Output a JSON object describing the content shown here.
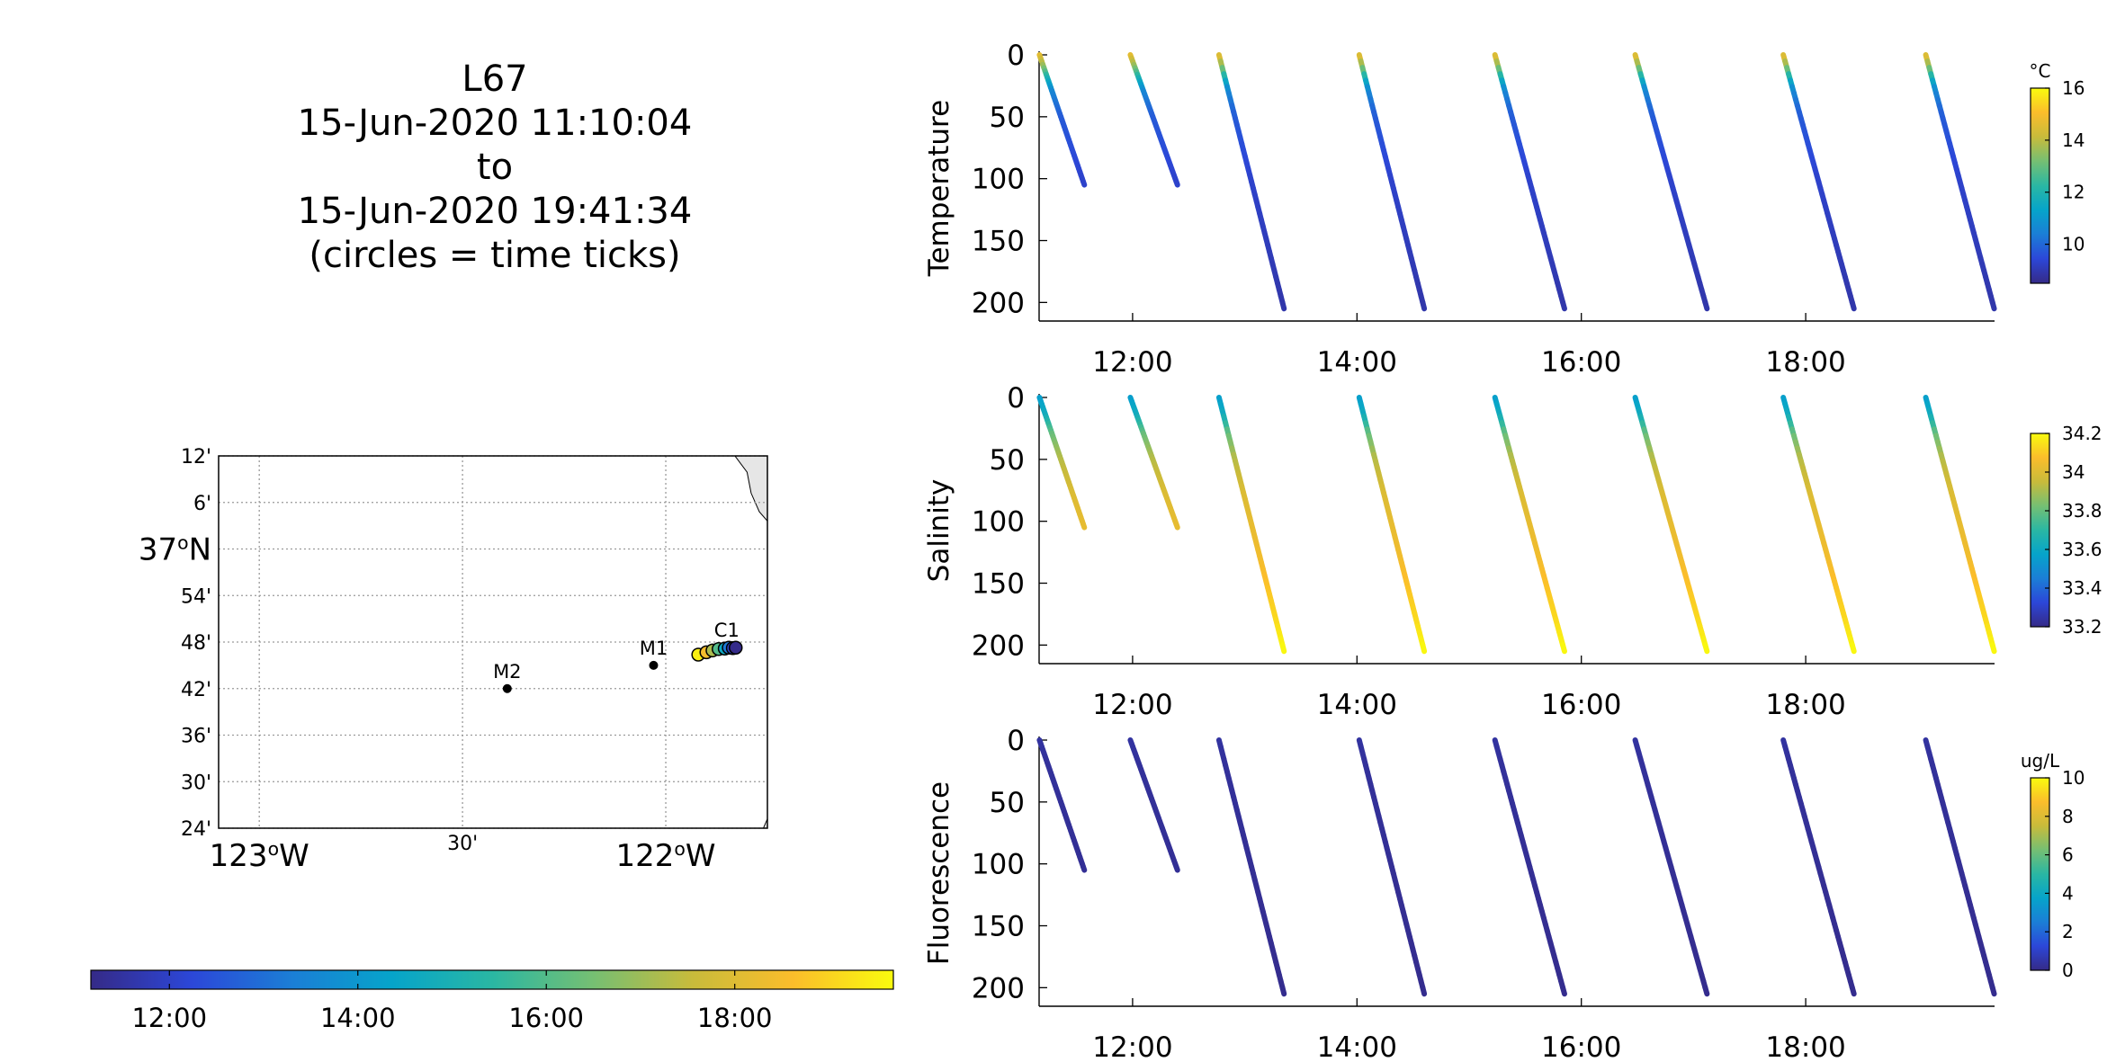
{
  "title": {
    "lines": [
      "L67",
      "15-Jun-2020 11:10:04",
      "to",
      "15-Jun-2020 19:41:34",
      "(circles = time ticks)"
    ]
  },
  "colors": {
    "parula": [
      "#352a87",
      "#2c47d8",
      "#1b7ed6",
      "#06a4ca",
      "#2ab7a3",
      "#75bf73",
      "#c8bb3b",
      "#fbbd2b",
      "#f9fb0e"
    ],
    "land": "#e6e6e6",
    "grid": "#9a9a9a"
  },
  "chart_data": [
    {
      "type": "map",
      "lon_ticks": [
        {
          "value": -123.0,
          "label": "123",
          "deg": "o",
          "suffix": "W"
        },
        {
          "value": -122.5,
          "label": "30'",
          "deg": "",
          "suffix": ""
        },
        {
          "value": -122.0,
          "label": "122",
          "deg": "o",
          "suffix": "W"
        }
      ],
      "lat_ticks": [
        {
          "value": 37.2,
          "label": "12'"
        },
        {
          "value": 37.1,
          "label": "6'"
        },
        {
          "value": 37.0,
          "label": "37",
          "deg": "o",
          "suffix": "N"
        },
        {
          "value": 36.9,
          "label": "54'"
        },
        {
          "value": 36.8,
          "label": "48'"
        },
        {
          "value": 36.7,
          "label": "42'"
        },
        {
          "value": 36.6,
          "label": "36'"
        },
        {
          "value": 36.5,
          "label": "30'"
        },
        {
          "value": 36.4,
          "label": "24'"
        }
      ],
      "lon_range": [
        -123.1,
        -121.75
      ],
      "lat_range": [
        36.4,
        37.2
      ],
      "stations": [
        {
          "name": "M2",
          "lon": -122.39,
          "lat": 36.7
        },
        {
          "name": "M1",
          "lon": -122.03,
          "lat": 36.75
        },
        {
          "name": "C1",
          "lon": -121.85,
          "lat": 36.8
        }
      ],
      "track": [
        {
          "lon": -121.92,
          "lat": 36.773,
          "t": 19.5
        },
        {
          "lon": -121.9,
          "lat": 36.778,
          "t": 18.5
        },
        {
          "lon": -121.885,
          "lat": 36.782,
          "t": 17.2
        },
        {
          "lon": -121.87,
          "lat": 36.785,
          "t": 16.0
        },
        {
          "lon": -121.855,
          "lat": 36.786,
          "t": 14.6
        },
        {
          "lon": -121.845,
          "lat": 36.788,
          "t": 13.2
        },
        {
          "lon": -121.835,
          "lat": 36.787,
          "t": 12.0
        },
        {
          "lon": -121.828,
          "lat": 36.788,
          "t": 11.2
        }
      ],
      "coastline": [
        [
          -121.83,
          37.2
        ],
        [
          -121.8,
          37.165
        ],
        [
          -121.79,
          37.12
        ],
        [
          -121.77,
          37.08
        ],
        [
          -121.75,
          37.06
        ],
        [
          -121.72,
          37.03
        ],
        [
          -121.68,
          37.0
        ],
        [
          -121.64,
          36.97
        ],
        [
          -121.6,
          36.96
        ],
        [
          -121.55,
          36.95
        ],
        [
          -121.5,
          36.93
        ],
        [
          -121.45,
          36.9
        ],
        [
          -121.4,
          36.85
        ],
        [
          -121.38,
          36.8
        ],
        [
          -121.4,
          36.75
        ],
        [
          -121.44,
          36.7
        ],
        [
          -121.48,
          36.65
        ],
        [
          -121.52,
          36.62
        ],
        [
          -121.55,
          36.6
        ],
        [
          -121.6,
          36.58
        ],
        [
          -121.65,
          36.55
        ],
        [
          -121.7,
          36.52
        ],
        [
          -121.72,
          36.48
        ],
        [
          -121.74,
          36.44
        ],
        [
          -121.76,
          36.4
        ]
      ]
    },
    {
      "type": "colorbar",
      "orientation": "horizontal",
      "range": [
        11.1667,
        19.6833
      ],
      "tick_values": [
        12,
        14,
        16,
        18
      ],
      "tick_labels": [
        "12:00",
        "14:00",
        "16:00",
        "18:00"
      ]
    },
    {
      "type": "scatter",
      "ylabel": "Temperature",
      "units": "°C",
      "xlim": [
        11.1667,
        19.6833
      ],
      "ylim": [
        215,
        0
      ],
      "x_ticks": [
        12,
        14,
        16,
        18
      ],
      "x_tick_labels": [
        "12:00",
        "14:00",
        "16:00",
        "18:00"
      ],
      "y_ticks": [
        0,
        50,
        100,
        150,
        200
      ],
      "clim": [
        8.5,
        16
      ],
      "cbar_ticks": [
        10,
        12,
        14,
        16
      ],
      "profiles": [
        {
          "t0": 11.17,
          "t1": 11.57,
          "zmax": 105
        },
        {
          "t0": 11.98,
          "t1": 12.4,
          "zmax": 105
        },
        {
          "t0": 12.77,
          "t1": 13.35,
          "zmax": 205
        },
        {
          "t0": 14.02,
          "t1": 14.6,
          "zmax": 205
        },
        {
          "t0": 15.23,
          "t1": 15.85,
          "zmax": 205
        },
        {
          "t0": 16.48,
          "t1": 17.12,
          "zmax": 205
        },
        {
          "t0": 17.8,
          "t1": 18.43,
          "zmax": 205
        },
        {
          "t0": 19.07,
          "t1": 19.68,
          "zmax": 205
        }
      ],
      "profile_values": [
        {
          "z": 0,
          "v": 14.8
        },
        {
          "z": 10,
          "v": 13.5
        },
        {
          "z": 20,
          "v": 11.8
        },
        {
          "z": 30,
          "v": 10.6
        },
        {
          "z": 50,
          "v": 9.8
        },
        {
          "z": 100,
          "v": 9.3
        },
        {
          "z": 205,
          "v": 8.9
        }
      ]
    },
    {
      "type": "scatter",
      "ylabel": "Salinity",
      "units": "",
      "xlim": [
        11.1667,
        19.6833
      ],
      "ylim": [
        215,
        0
      ],
      "x_ticks": [
        12,
        14,
        16,
        18
      ],
      "x_tick_labels": [
        "12:00",
        "14:00",
        "16:00",
        "18:00"
      ],
      "y_ticks": [
        0,
        50,
        100,
        150,
        200
      ],
      "clim": [
        33.2,
        34.2
      ],
      "cbar_ticks": [
        33.2,
        33.4,
        33.6,
        33.8,
        34.0,
        34.2
      ],
      "cbar_tick_labels": [
        "33.2",
        "33.4",
        "33.6",
        "33.8",
        "34",
        "34.2"
      ],
      "profile_values": [
        {
          "z": 0,
          "v": 33.55
        },
        {
          "z": 15,
          "v": 33.62
        },
        {
          "z": 30,
          "v": 33.8
        },
        {
          "z": 50,
          "v": 33.92
        },
        {
          "z": 80,
          "v": 34.0
        },
        {
          "z": 130,
          "v": 34.05
        },
        {
          "z": 180,
          "v": 34.13
        },
        {
          "z": 205,
          "v": 34.2
        }
      ]
    },
    {
      "type": "scatter",
      "ylabel": "Fluorescence",
      "units": "ug/L",
      "xlim": [
        11.1667,
        19.6833
      ],
      "ylim": [
        215,
        0
      ],
      "x_ticks": [
        12,
        14,
        16,
        18
      ],
      "x_tick_labels": [
        "12:00",
        "14:00",
        "16:00",
        "18:00"
      ],
      "y_ticks": [
        0,
        50,
        100,
        150,
        200
      ],
      "clim": [
        0,
        10
      ],
      "cbar_ticks": [
        0,
        2,
        4,
        6,
        8,
        10
      ],
      "profile_values": [
        {
          "z": 0,
          "v": 0.4
        },
        {
          "z": 20,
          "v": 0.3
        },
        {
          "z": 205,
          "v": 0.1
        }
      ]
    }
  ]
}
